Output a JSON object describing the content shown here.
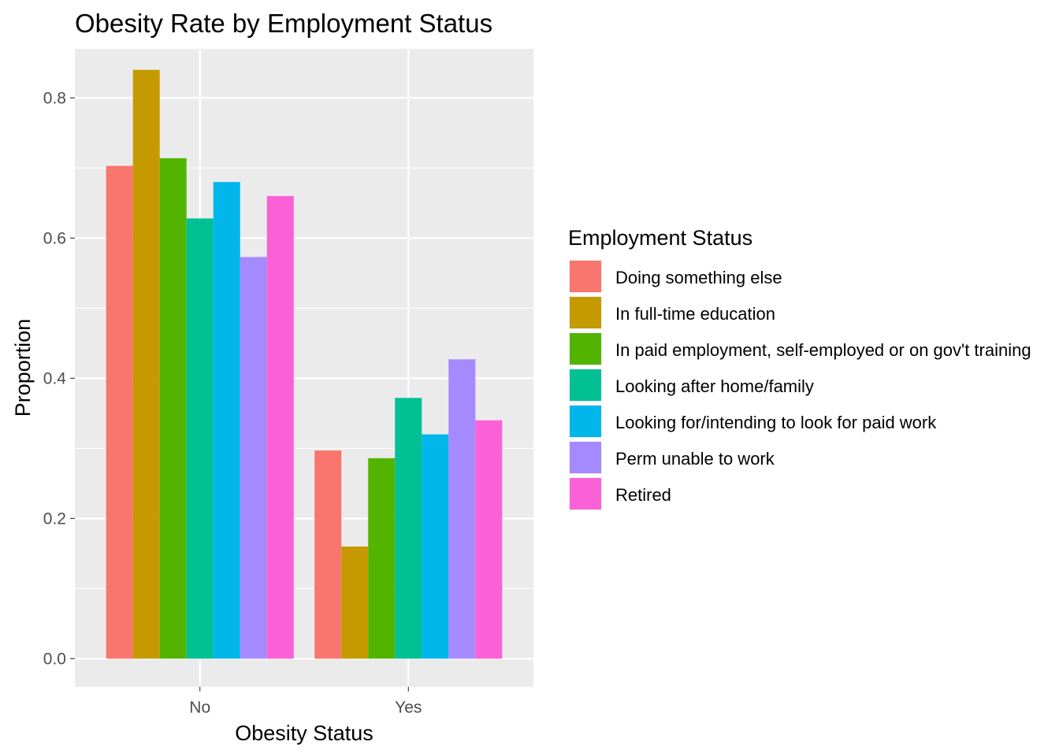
{
  "chart_data": {
    "type": "bar",
    "title": "Obesity Rate by Employment Status",
    "xlabel": "Obesity Status",
    "ylabel": "Proportion",
    "categories": [
      "No",
      "Yes"
    ],
    "ylim": [
      -0.04,
      0.87
    ],
    "yticks": [
      "0.0",
      "0.2",
      "0.4",
      "0.6",
      "0.8"
    ],
    "grid": true,
    "legend": {
      "title": "Employment Status",
      "placement": "right"
    },
    "series": [
      {
        "name": "Doing something else",
        "color": "#F8766D",
        "values": [
          0.703,
          0.297
        ]
      },
      {
        "name": "In full-time education",
        "color": "#C49A00",
        "values": [
          0.84,
          0.16
        ]
      },
      {
        "name": "In paid employment, self-employed or on gov't training",
        "color": "#53B400",
        "values": [
          0.714,
          0.286
        ]
      },
      {
        "name": "Looking after home/family",
        "color": "#00C094",
        "values": [
          0.628,
          0.372
        ]
      },
      {
        "name": "Looking for/intending to look for paid work",
        "color": "#00B6EB",
        "values": [
          0.68,
          0.32
        ]
      },
      {
        "name": "Perm unable to work",
        "color": "#A58AFF",
        "values": [
          0.573,
          0.427
        ]
      },
      {
        "name": "Retired",
        "color": "#FB61D7",
        "values": [
          0.66,
          0.34
        ]
      }
    ]
  }
}
